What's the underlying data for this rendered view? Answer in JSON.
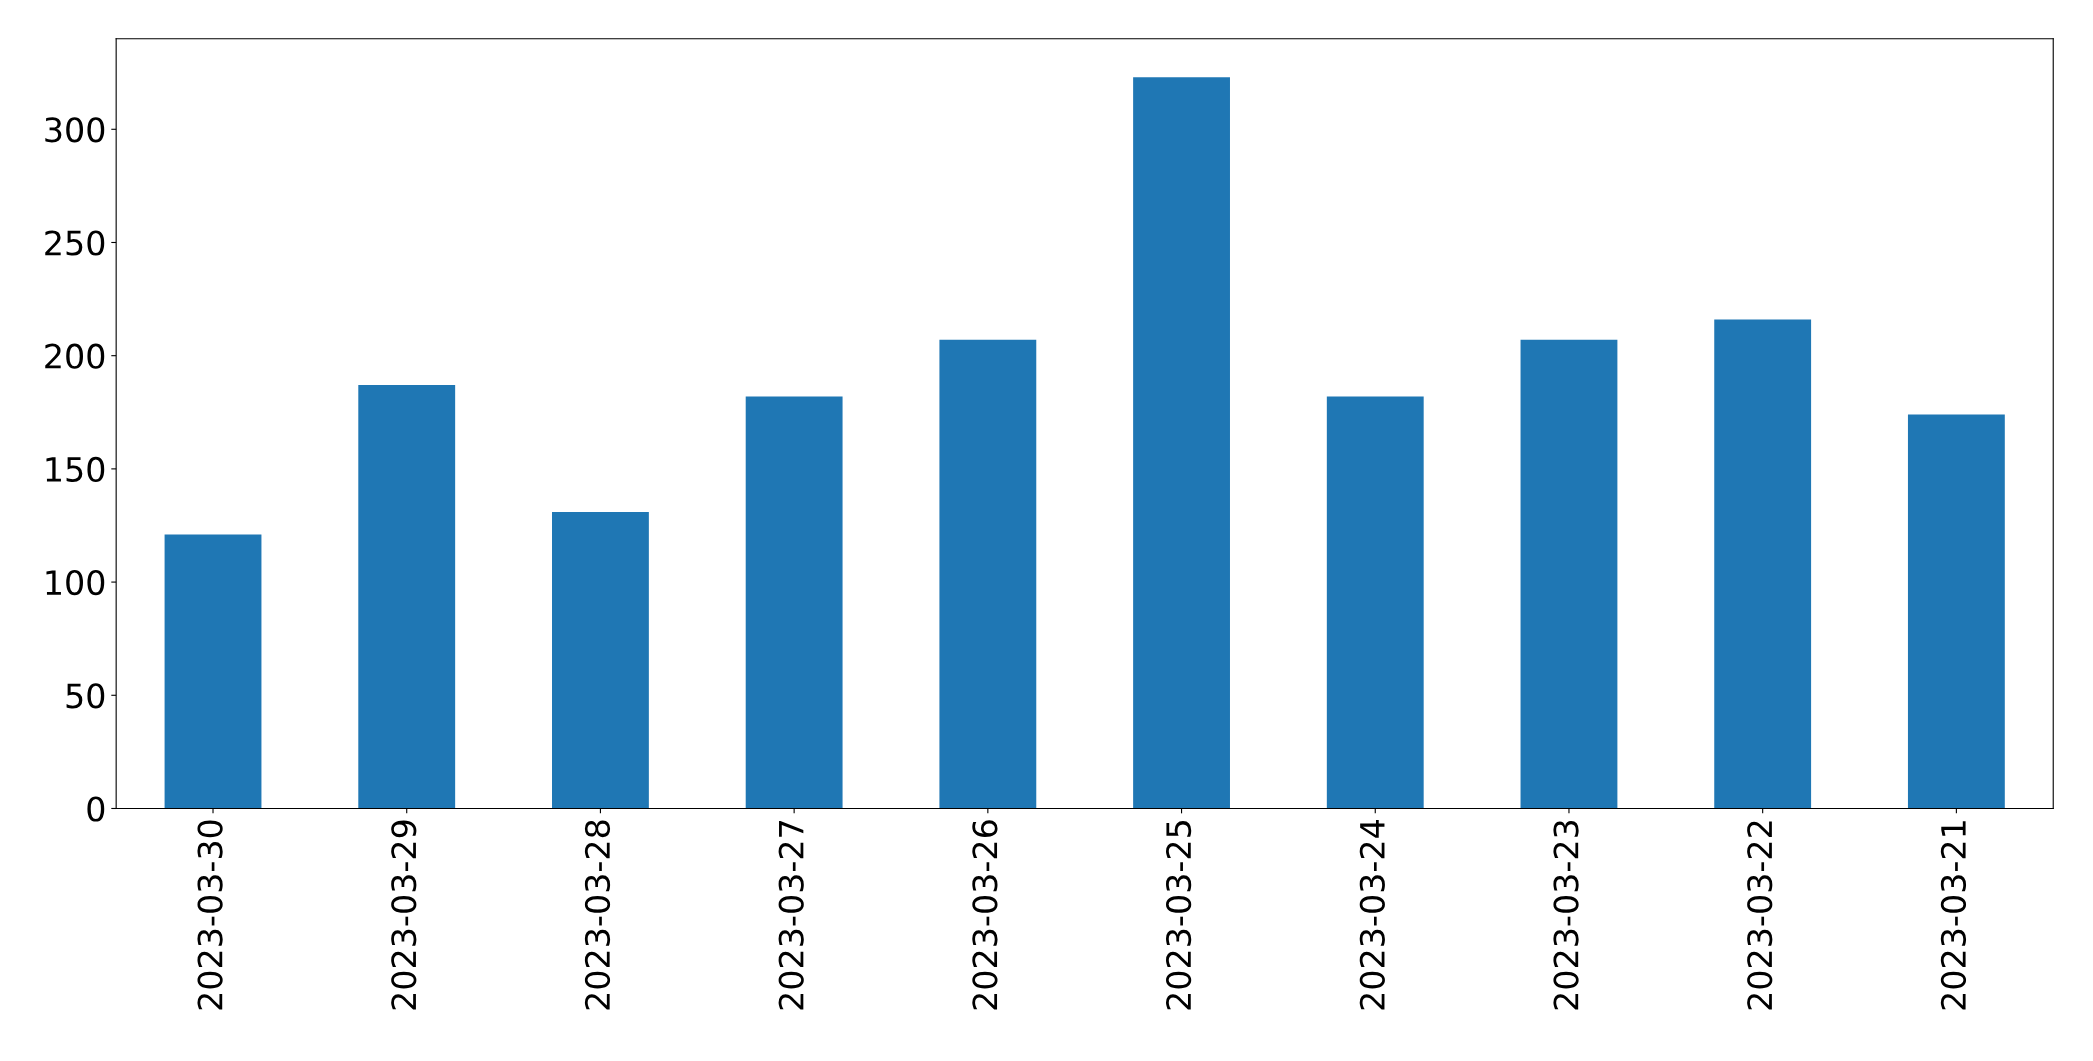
{
  "chart_data": {
    "type": "bar",
    "categories": [
      "2023-03-30",
      "2023-03-29",
      "2023-03-28",
      "2023-03-27",
      "2023-03-26",
      "2023-03-25",
      "2023-03-24",
      "2023-03-23",
      "2023-03-22",
      "2023-03-21"
    ],
    "values": [
      121,
      187,
      131,
      182,
      207,
      323,
      182,
      207,
      216,
      174
    ],
    "color": "#1f77b4",
    "ylim": [
      0,
      340
    ],
    "yticks": [
      0,
      50,
      100,
      150,
      200,
      250,
      300
    ],
    "grid": false,
    "legend": false
  }
}
